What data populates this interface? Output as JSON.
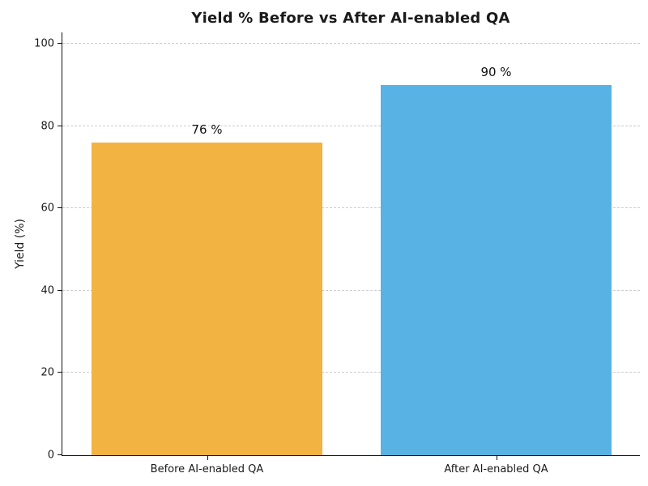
{
  "chart_data": {
    "type": "bar",
    "title": "Yield % Before vs After AI-enabled QA",
    "categories": [
      "Before AI-enabled QA",
      "After AI-enabled QA"
    ],
    "values": [
      76,
      90
    ],
    "value_labels": [
      "76 %",
      "90 %"
    ],
    "bar_colors": [
      "#F2B342",
      "#58B2E3"
    ],
    "xlabel": "",
    "ylabel": "Yield (%)",
    "ylim": [
      0,
      103
    ],
    "yticks": [
      0,
      20,
      40,
      60,
      80,
      100
    ],
    "grid": "horizontal-dashed",
    "gridline_color": "#cccccc",
    "legend": "none",
    "bar_width_fraction": 0.8
  }
}
